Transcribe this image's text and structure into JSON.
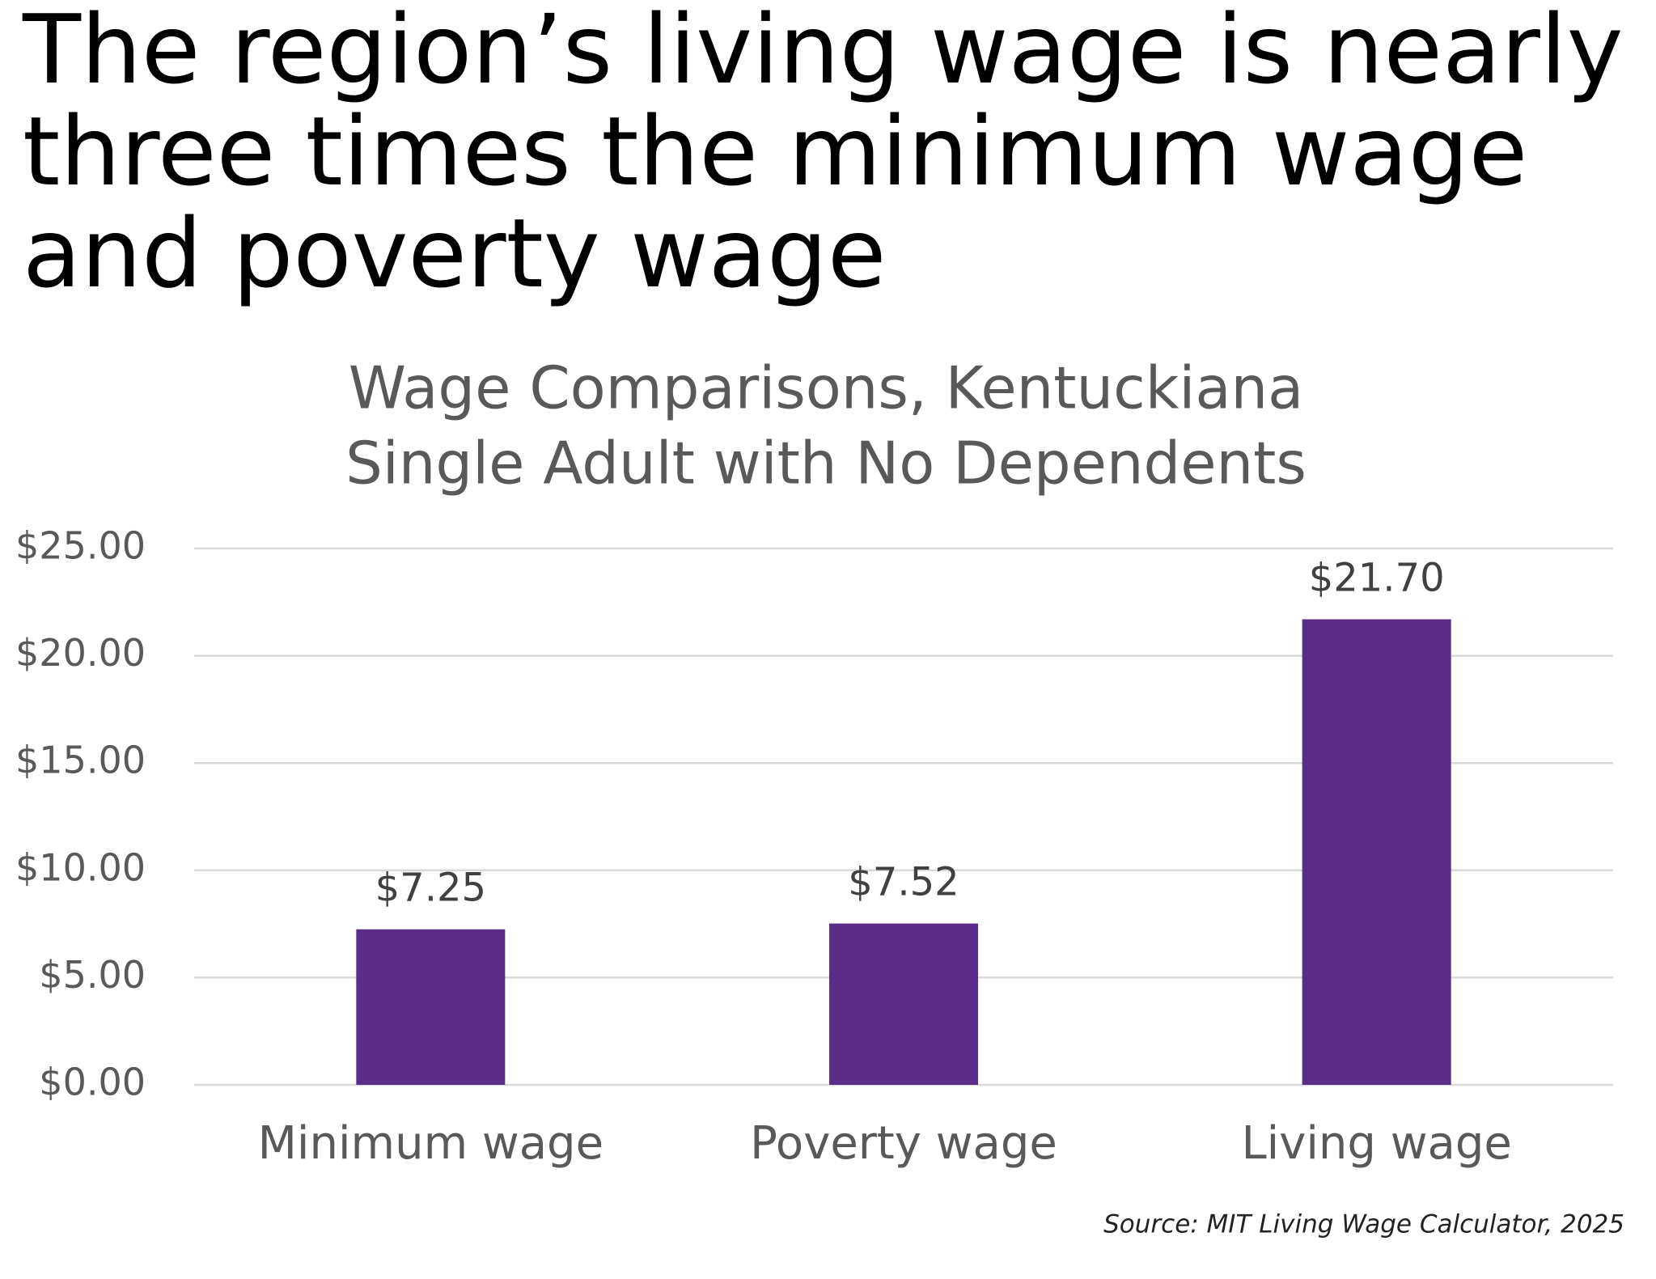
{
  "chart_data": {
    "type": "bar",
    "headline": [
      "The region’s living wage is nearly",
      "three times the minimum wage",
      "and poverty wage"
    ],
    "title": "Wage Comparisons, Kentuckiana",
    "subtitle": "Single Adult with No Dependents",
    "categories": [
      "Minimum wage",
      "Poverty wage",
      "Living wage"
    ],
    "values": [
      7.25,
      7.52,
      21.7
    ],
    "value_labels": [
      "$7.25",
      "$7.52",
      "$21.70"
    ],
    "color": "#5b2c8a",
    "ylim": [
      0,
      25
    ],
    "yticks": [
      {
        "value": 0,
        "label": "$0.00"
      },
      {
        "value": 5,
        "label": "$5.00"
      },
      {
        "value": 10,
        "label": "$10.00"
      },
      {
        "value": 15,
        "label": "$15.00"
      },
      {
        "value": 20,
        "label": "$20.00"
      },
      {
        "value": 25,
        "label": "$25.00"
      }
    ],
    "grid": true,
    "source": "Source: MIT Living Wage Calculator, 2025"
  }
}
